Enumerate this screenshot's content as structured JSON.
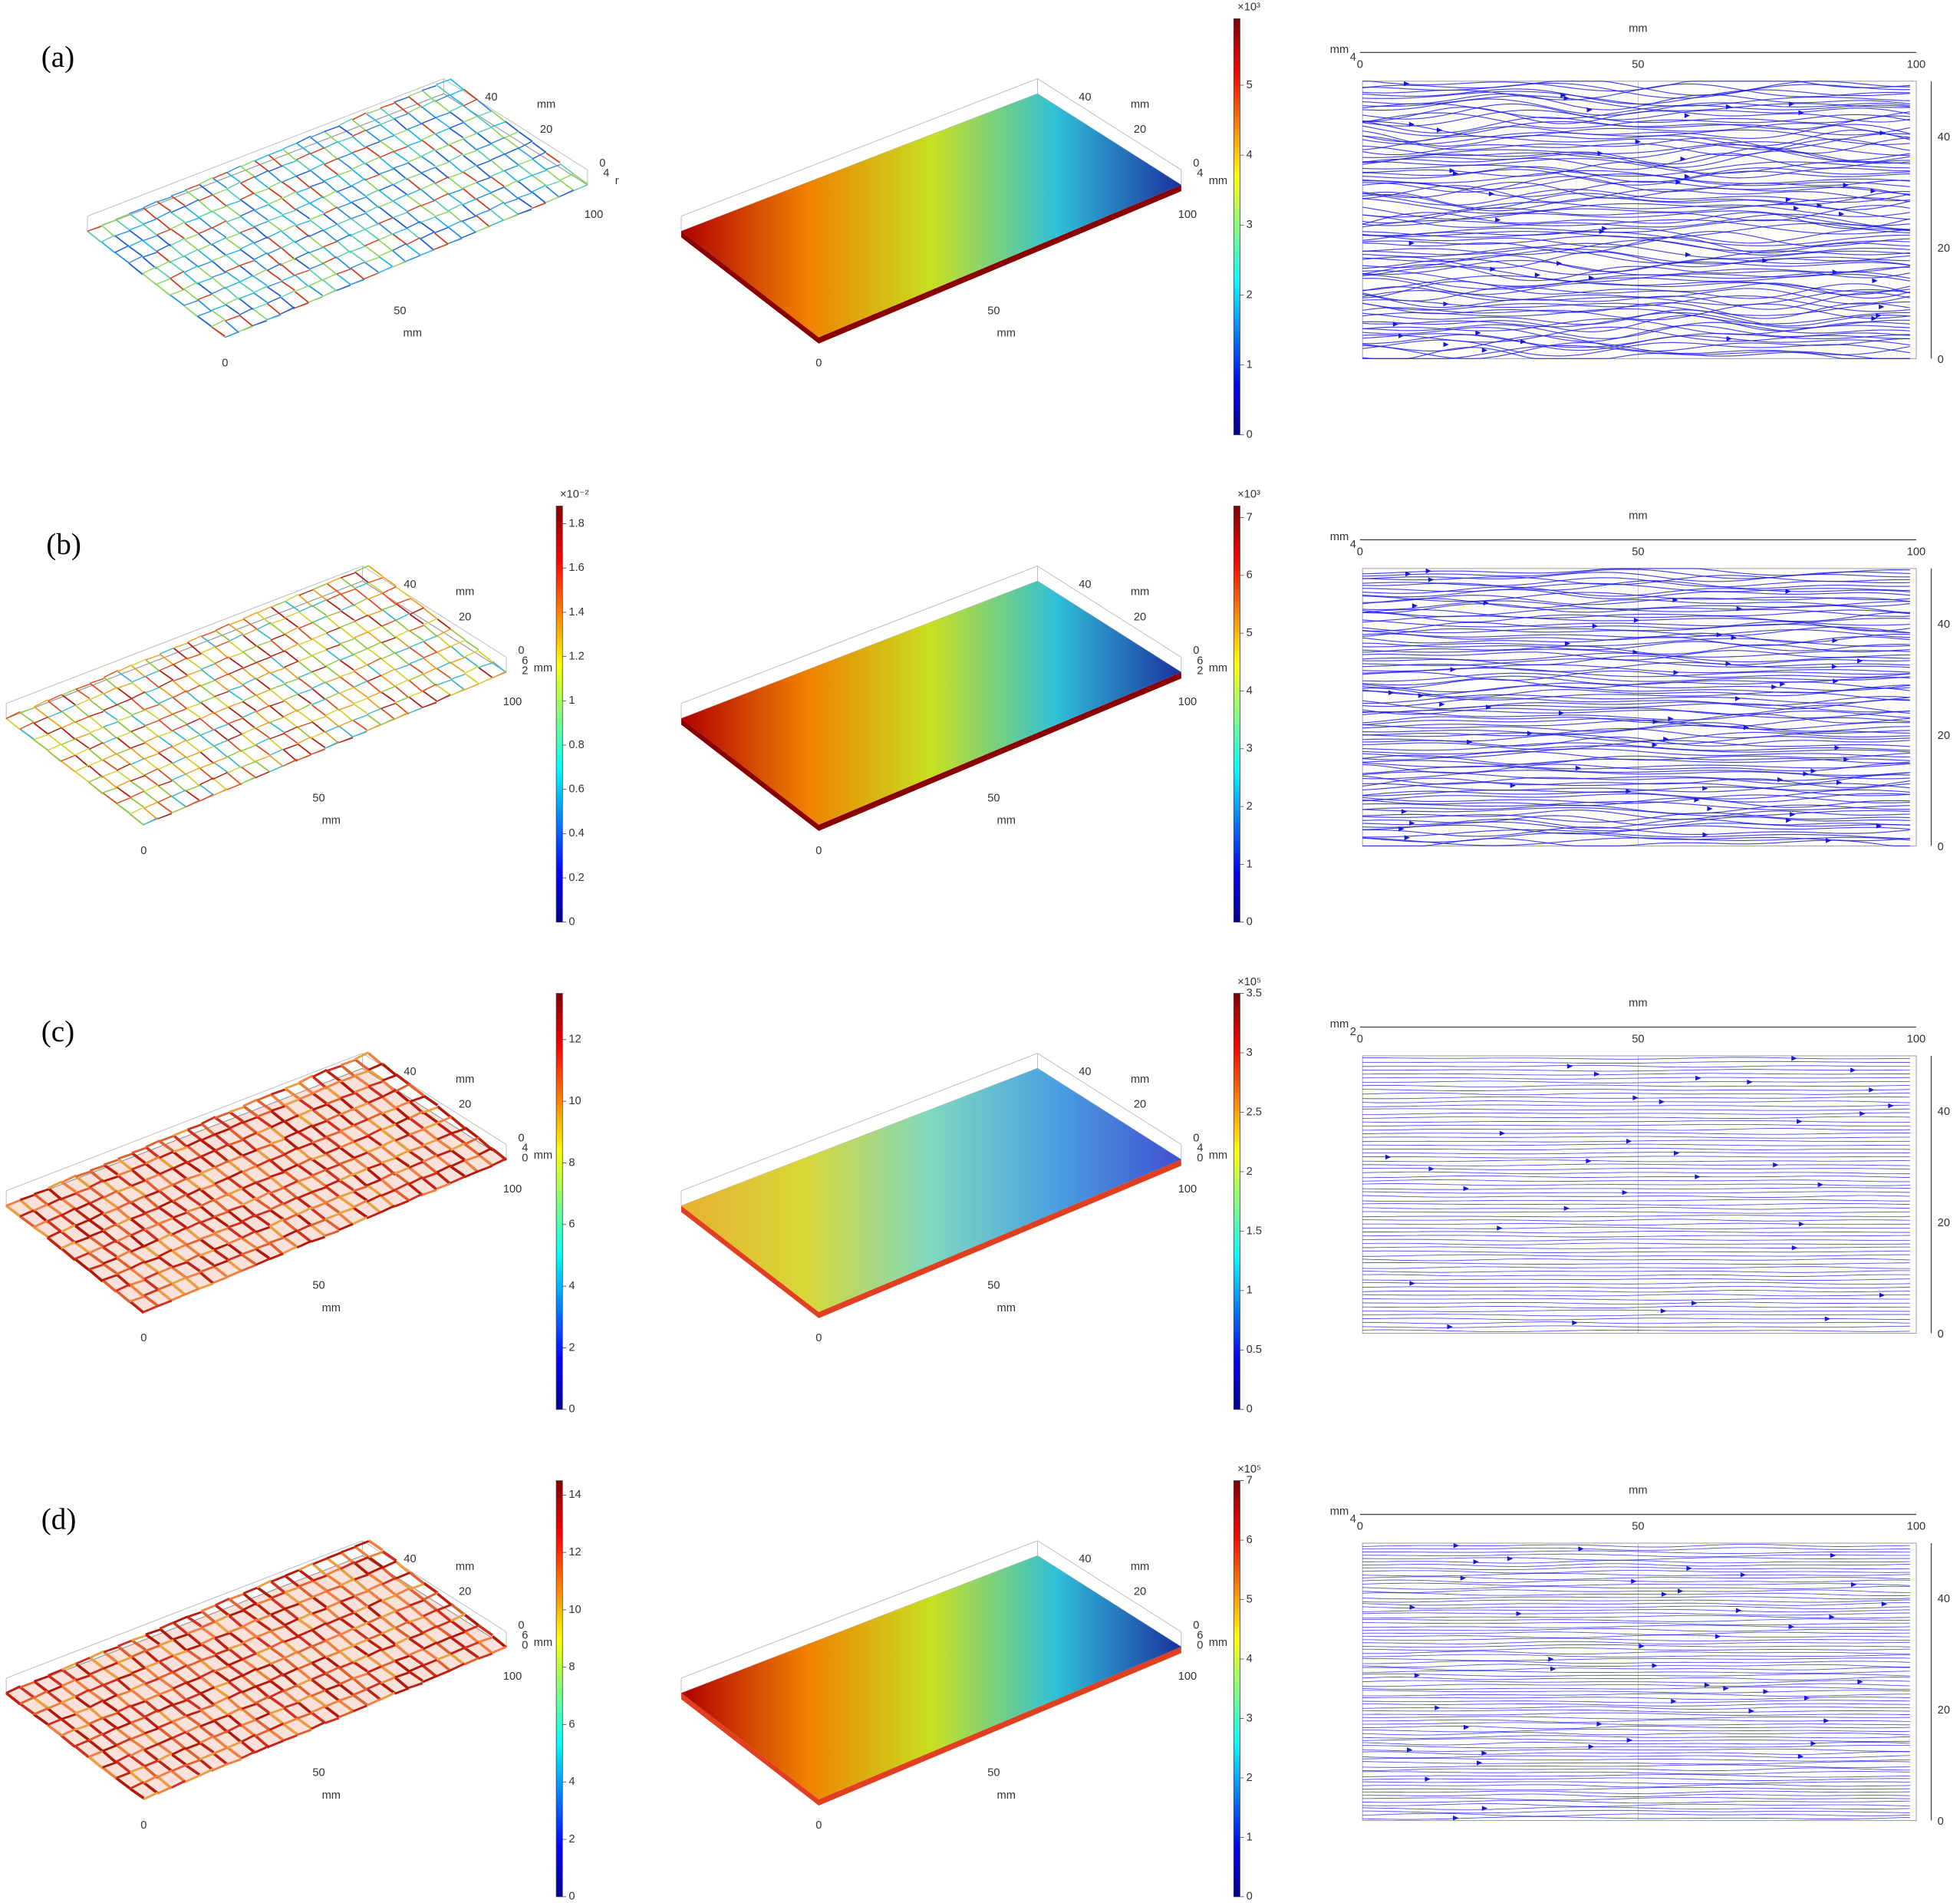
{
  "rows": [
    {
      "label": "(a)",
      "mesh": {
        "x_ticks": [
          "0",
          "50",
          "100"
        ],
        "y_ticks": [
          "40",
          "20",
          "0"
        ],
        "z_ticks": [
          "4"
        ],
        "x_unit": "mm",
        "y_unit": "mm",
        "z_unit": "r",
        "colorbar": null
      },
      "surface": {
        "x_ticks": [
          "0",
          "50",
          "100"
        ],
        "y_ticks": [
          "40",
          "20",
          "0"
        ],
        "z_ticks": [
          "4"
        ],
        "x_unit": "mm",
        "y_unit": "mm",
        "z_unit": "mm",
        "colorbar": {
          "exponent": "×10³",
          "lim": [
            0,
            5.95
          ],
          "ticks": [
            0,
            1,
            2,
            3,
            4,
            5
          ]
        }
      },
      "streamlines": {
        "x_unit": "mm",
        "y_unit": "mm",
        "corner_tick": "4",
        "x_ticks": [
          0,
          50,
          100
        ],
        "y_ticks": [
          0,
          20,
          40
        ]
      }
    },
    {
      "label": "(b)",
      "mesh": {
        "x_ticks": [
          "0",
          "50",
          "100"
        ],
        "y_ticks": [
          "40",
          "20",
          "0"
        ],
        "z_ticks": [
          "6",
          "2"
        ],
        "x_unit": "mm",
        "y_unit": "mm",
        "z_unit": "mm",
        "colorbar": {
          "exponent": "×10⁻²",
          "lim": [
            0,
            1.88
          ],
          "ticks": [
            0,
            0.2,
            0.4,
            0.6,
            0.8,
            1,
            1.2,
            1.4,
            1.6,
            1.8
          ]
        }
      },
      "surface": {
        "x_ticks": [
          "0",
          "50",
          "100"
        ],
        "y_ticks": [
          "40",
          "20",
          "0"
        ],
        "z_ticks": [
          "6",
          "2"
        ],
        "x_unit": "mm",
        "y_unit": "mm",
        "z_unit": "mm",
        "colorbar": {
          "exponent": "×10³",
          "lim": [
            0,
            7.2
          ],
          "ticks": [
            0,
            1,
            2,
            3,
            4,
            5,
            6,
            7
          ]
        }
      },
      "streamlines": {
        "x_unit": "mm",
        "y_unit": "mm",
        "corner_tick": "4",
        "x_ticks": [
          0,
          50,
          100
        ],
        "y_ticks": [
          0,
          20,
          40
        ]
      }
    },
    {
      "label": "(c)",
      "mesh": {
        "x_ticks": [
          "0",
          "50",
          "100"
        ],
        "y_ticks": [
          "40",
          "20",
          "0"
        ],
        "z_ticks": [
          "4",
          "0"
        ],
        "x_unit": "mm",
        "y_unit": "mm",
        "z_unit": "mm",
        "colorbar": {
          "exponent": null,
          "lim": [
            0,
            13.5
          ],
          "ticks": [
            0,
            2,
            4,
            6,
            8,
            10,
            12
          ]
        }
      },
      "surface": {
        "x_ticks": [
          "0",
          "50",
          "100"
        ],
        "y_ticks": [
          "40",
          "20",
          "0"
        ],
        "z_ticks": [
          "4",
          "0"
        ],
        "x_unit": "mm",
        "y_unit": "mm",
        "z_unit": "mm",
        "colorbar": {
          "exponent": "×10⁵",
          "lim": [
            0,
            3.5
          ],
          "ticks": [
            0,
            0.5,
            1,
            1.5,
            2,
            2.5,
            3,
            3.5
          ]
        }
      },
      "streamlines": {
        "x_unit": "mm",
        "y_unit": "mm",
        "corner_tick": "2",
        "x_ticks": [
          0,
          50,
          100
        ],
        "y_ticks": [
          0,
          20,
          40
        ]
      }
    },
    {
      "label": "(d)",
      "mesh": {
        "x_ticks": [
          "0",
          "50",
          "100"
        ],
        "y_ticks": [
          "40",
          "20",
          "0"
        ],
        "z_ticks": [
          "6",
          "0"
        ],
        "x_unit": "mm",
        "y_unit": "mm",
        "z_unit": "mm",
        "colorbar": {
          "exponent": null,
          "lim": [
            0,
            14.5
          ],
          "ticks": [
            0,
            2,
            4,
            6,
            8,
            10,
            12,
            14
          ]
        }
      },
      "surface": {
        "x_ticks": [
          "0",
          "50",
          "100"
        ],
        "y_ticks": [
          "40",
          "20",
          "0"
        ],
        "z_ticks": [
          "6",
          "0"
        ],
        "x_unit": "mm",
        "y_unit": "mm",
        "z_unit": "mm",
        "colorbar": {
          "exponent": "×10⁵",
          "lim": [
            0,
            7
          ],
          "ticks": [
            0,
            1,
            2,
            3,
            4,
            5,
            6,
            7
          ]
        }
      },
      "streamlines": {
        "x_unit": "mm",
        "y_unit": "mm",
        "corner_tick": "4",
        "x_ticks": [
          0,
          50,
          100
        ],
        "y_ticks": [
          0,
          20,
          40
        ]
      }
    }
  ]
}
